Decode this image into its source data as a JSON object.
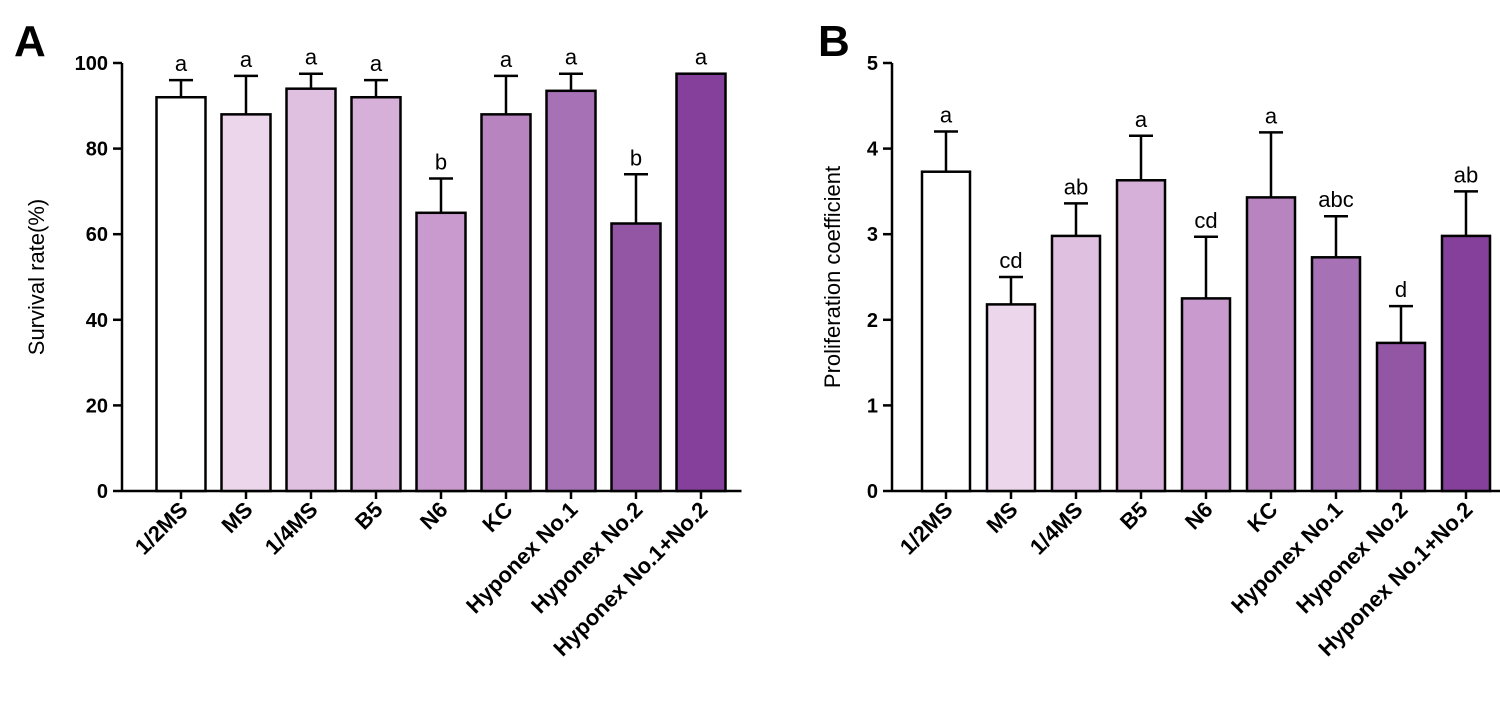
{
  "chart_data": [
    {
      "panel": "A",
      "type": "bar",
      "title": "",
      "xlabel": "",
      "ylabel": "Survival rate(%)",
      "ylim": [
        0,
        100
      ],
      "yticks": [
        "0",
        "20",
        "40",
        "60",
        "80",
        "100"
      ],
      "grid": false,
      "categories": [
        "1/2MS",
        "MS",
        "1/4MS",
        "B5",
        "N6",
        "KC",
        "Hyponex No.1",
        "Hyponex No.2",
        "Hyponex No.1+No.2"
      ],
      "values": [
        92,
        88,
        94,
        92,
        65,
        88,
        93.5,
        62.5,
        97.5
      ],
      "errors": [
        4,
        9,
        3.5,
        4,
        8,
        9,
        4,
        11.5,
        0
      ],
      "significance": [
        "a",
        "a",
        "a",
        "a",
        "b",
        "a",
        "a",
        "b",
        "a"
      ],
      "colors": [
        "#ffffff",
        "#ebd6eb",
        "#e0c0e0",
        "#d6b0d8",
        "#c99acd",
        "#b884c0",
        "#a672b5",
        "#9356a5",
        "#84409a"
      ]
    },
    {
      "panel": "B",
      "type": "bar",
      "title": "",
      "xlabel": "",
      "ylabel": "Proliferation coefficient",
      "ylim": [
        0,
        5
      ],
      "yticks": [
        "0",
        "1",
        "2",
        "3",
        "4",
        "5"
      ],
      "grid": false,
      "categories": [
        "1/2MS",
        "MS",
        "1/4MS",
        "B5",
        "N6",
        "KC",
        "Hyponex No.1",
        "Hyponex No.2",
        "Hyponex No.1+No.2"
      ],
      "values": [
        3.73,
        2.18,
        2.98,
        3.63,
        2.25,
        3.43,
        2.73,
        1.73,
        2.98
      ],
      "errors": [
        0.47,
        0.32,
        0.38,
        0.52,
        0.72,
        0.76,
        0.48,
        0.43,
        0.52
      ],
      "significance": [
        "a",
        "cd",
        "ab",
        "a",
        "cd",
        "a",
        "abc",
        "d",
        "ab"
      ],
      "colors": [
        "#ffffff",
        "#ebd6eb",
        "#e0c0e0",
        "#d6b0d8",
        "#c99acd",
        "#b884c0",
        "#a672b5",
        "#9356a5",
        "#84409a"
      ]
    }
  ]
}
